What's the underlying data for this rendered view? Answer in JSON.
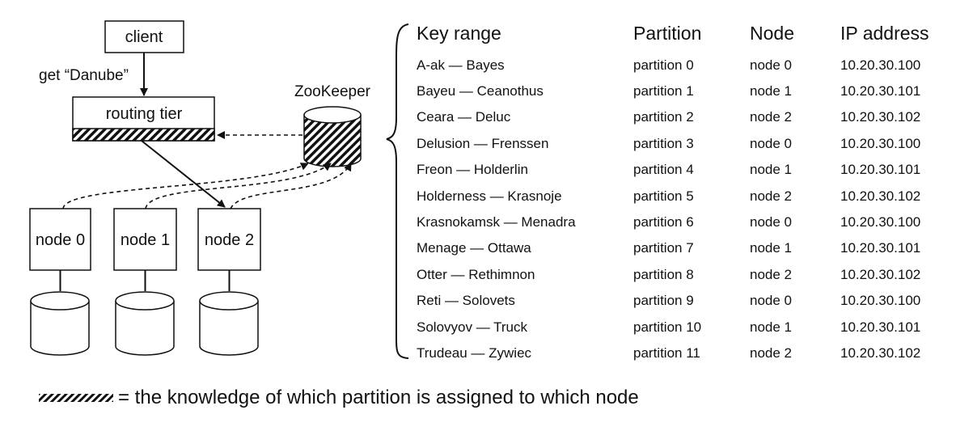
{
  "diagram": {
    "client": "client",
    "request": "get “Danube”",
    "routing_tier": "routing tier",
    "zookeeper": "ZooKeeper",
    "nodes": [
      "node 0",
      "node 1",
      "node 2"
    ]
  },
  "table": {
    "headers": [
      "Key range",
      "Partition",
      "Node",
      "IP address"
    ],
    "rows": [
      [
        "A-ak — Bayes",
        "partition 0",
        "node 0",
        "10.20.30.100"
      ],
      [
        "Bayeu — Ceanothus",
        "partition 1",
        "node 1",
        "10.20.30.101"
      ],
      [
        "Ceara — Deluc",
        "partition 2",
        "node 2",
        "10.20.30.102"
      ],
      [
        "Delusion — Frenssen",
        "partition 3",
        "node 0",
        "10.20.30.100"
      ],
      [
        "Freon — Holderlin",
        "partition 4",
        "node 1",
        "10.20.30.101"
      ],
      [
        "Holderness — Krasnoje",
        "partition 5",
        "node 2",
        "10.20.30.102"
      ],
      [
        "Krasnokamsk — Menadra",
        "partition 6",
        "node 0",
        "10.20.30.100"
      ],
      [
        "Menage — Ottawa",
        "partition 7",
        "node 1",
        "10.20.30.101"
      ],
      [
        "Otter — Rethimnon",
        "partition 8",
        "node 2",
        "10.20.30.102"
      ],
      [
        "Reti — Solovets",
        "partition 9",
        "node 0",
        "10.20.30.100"
      ],
      [
        "Solovyov — Truck",
        "partition 10",
        "node 1",
        "10.20.30.101"
      ],
      [
        "Trudeau — Zywiec",
        "partition 11",
        "node 2",
        "10.20.30.102"
      ]
    ]
  },
  "legend": {
    "text": "= the knowledge of which partition is assigned to which node"
  }
}
